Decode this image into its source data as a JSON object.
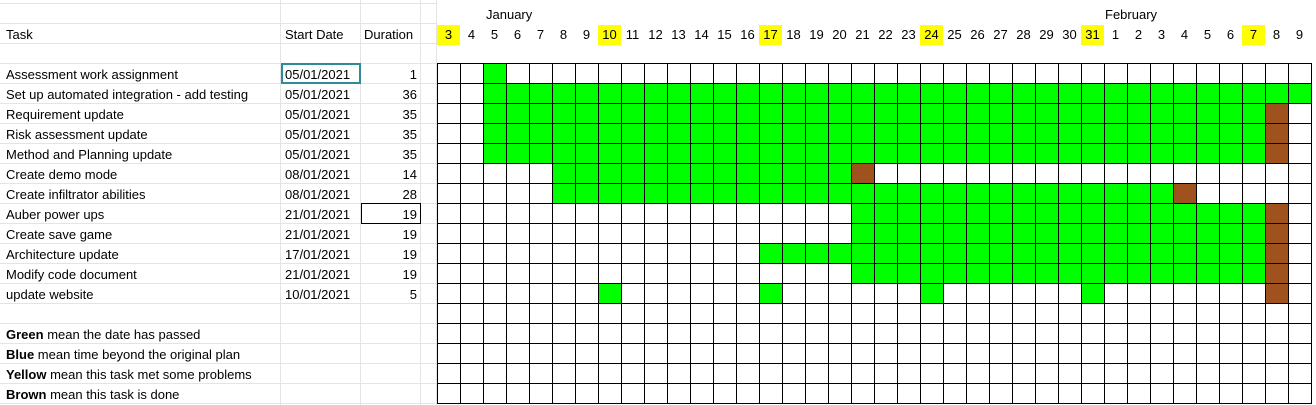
{
  "headers": {
    "task": "Task",
    "start_date": "Start Date",
    "duration": "Duration",
    "month_january": "January",
    "month_february": "February"
  },
  "days": [
    "3",
    "4",
    "5",
    "6",
    "7",
    "8",
    "9",
    "10",
    "11",
    "12",
    "13",
    "14",
    "15",
    "16",
    "17",
    "18",
    "19",
    "20",
    "21",
    "22",
    "23",
    "24",
    "25",
    "26",
    "27",
    "28",
    "29",
    "30",
    "31",
    "1",
    "2",
    "3",
    "4",
    "5",
    "6",
    "7",
    "8",
    "9"
  ],
  "highlighted_day_indices": [
    0,
    7,
    14,
    21,
    28,
    35
  ],
  "colors": {
    "green": "#00ff00",
    "brown": "#a0521e",
    "yellow": "#ffff00",
    "grid": "#000000",
    "sheet_grid": "#e4e4e4",
    "selection": "#2e8b9a"
  },
  "tasks": [
    {
      "name": "Assessment work assignment",
      "start": "05/01/2021",
      "duration": "1",
      "green": [
        [
          2,
          2
        ]
      ],
      "brown": []
    },
    {
      "name": "Set up automated integration - add testing",
      "start": "05/01/2021",
      "duration": "36",
      "green": [
        [
          2,
          37
        ]
      ],
      "brown": []
    },
    {
      "name": "Requirement update",
      "start": "05/01/2021",
      "duration": "35",
      "green": [
        [
          2,
          35
        ]
      ],
      "brown": [
        [
          36,
          36
        ]
      ]
    },
    {
      "name": "Risk assessment update",
      "start": "05/01/2021",
      "duration": "35",
      "green": [
        [
          2,
          35
        ]
      ],
      "brown": [
        [
          36,
          36
        ]
      ]
    },
    {
      "name": "Method and Planning update",
      "start": "05/01/2021",
      "duration": "35",
      "green": [
        [
          2,
          35
        ]
      ],
      "brown": [
        [
          36,
          36
        ]
      ]
    },
    {
      "name": "Create demo mode",
      "start": "08/01/2021",
      "duration": "14",
      "green": [
        [
          5,
          17
        ]
      ],
      "brown": [
        [
          18,
          18
        ]
      ]
    },
    {
      "name": "Create infiltrator abilities",
      "start": "08/01/2021",
      "duration": "28",
      "green": [
        [
          5,
          31
        ]
      ],
      "brown": [
        [
          32,
          32
        ]
      ]
    },
    {
      "name": "Auber power ups",
      "start": "21/01/2021",
      "duration": "19",
      "green": [
        [
          18,
          35
        ]
      ],
      "brown": [
        [
          36,
          36
        ]
      ]
    },
    {
      "name": "Create save game",
      "start": "21/01/2021",
      "duration": "19",
      "green": [
        [
          18,
          35
        ]
      ],
      "brown": [
        [
          36,
          36
        ]
      ]
    },
    {
      "name": "Architecture update",
      "start": "17/01/2021",
      "duration": "19",
      "green": [
        [
          14,
          17
        ],
        [
          18,
          35
        ]
      ],
      "brown": [
        [
          36,
          36
        ]
      ]
    },
    {
      "name": "Modify code document",
      "start": "21/01/2021",
      "duration": "19",
      "green": [
        [
          18,
          35
        ]
      ],
      "brown": [
        [
          36,
          36
        ]
      ]
    },
    {
      "name": "update website",
      "start": "10/01/2021",
      "duration": "5",
      "green": [
        [
          7,
          7
        ],
        [
          14,
          14
        ],
        [
          21,
          21
        ],
        [
          28,
          28
        ]
      ],
      "brown": [
        [
          36,
          36
        ]
      ]
    }
  ],
  "legend": [
    {
      "bold": "Green",
      "rest": " mean the date has passed"
    },
    {
      "bold": "Blue",
      "rest": " mean time beyond the original plan"
    },
    {
      "bold": "Yellow",
      "rest": " mean this task met some problems"
    },
    {
      "bold": "Brown",
      "rest": " mean this task is done"
    }
  ]
}
